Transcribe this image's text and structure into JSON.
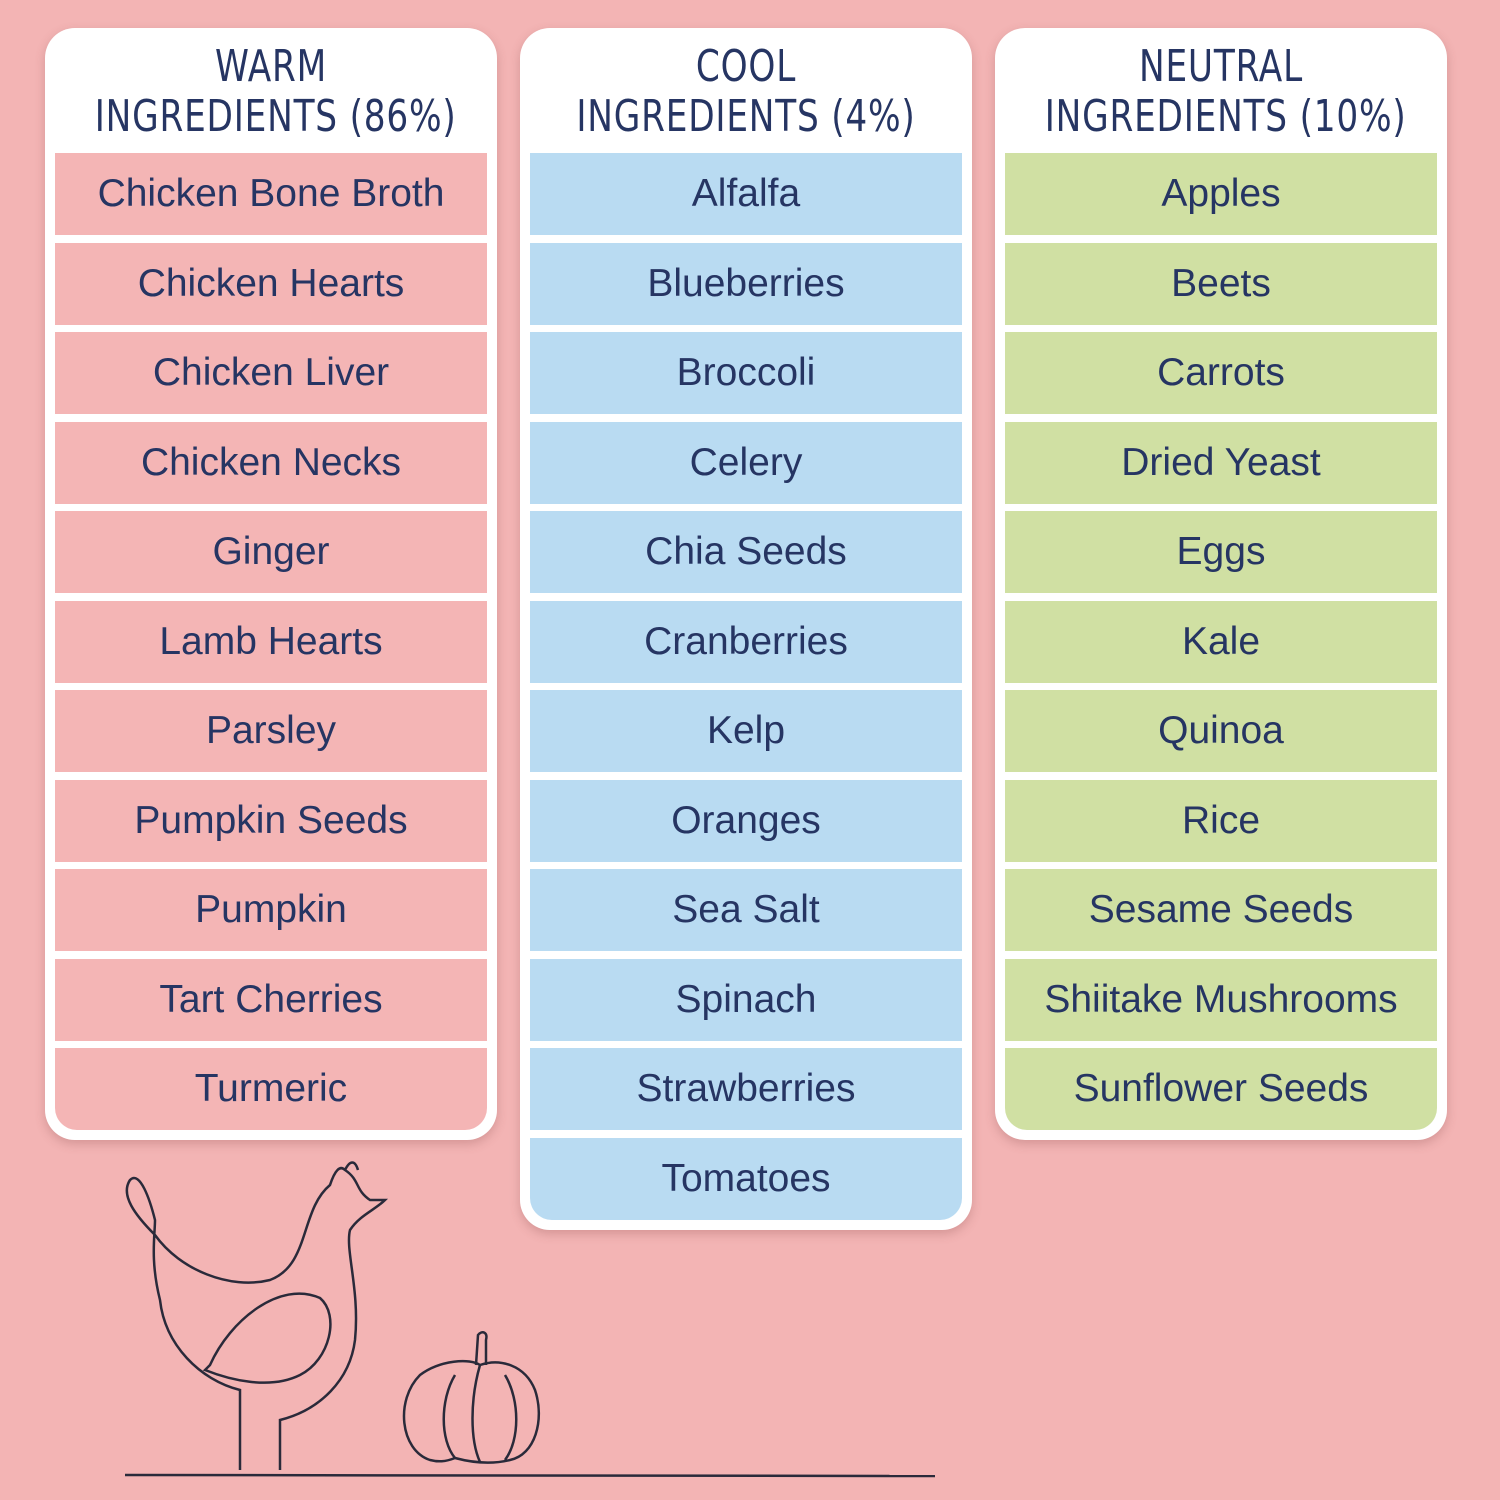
{
  "columns": [
    {
      "title_lines": [
        "WARM",
        "INGREDIENTS (86%)"
      ],
      "color": "#f4b5b5",
      "items": [
        "Chicken Bone Broth",
        "Chicken Hearts",
        "Chicken Liver",
        "Chicken Necks",
        "Ginger",
        "Lamb Hearts",
        "Parsley",
        "Pumpkin Seeds",
        "Pumpkin",
        "Tart Cherries",
        "Turmeric"
      ]
    },
    {
      "title_lines": [
        "COOL",
        "INGREDIENTS (4%)"
      ],
      "color": "#b9dbf2",
      "items": [
        "Alfalfa",
        "Blueberries",
        "Broccoli",
        "Celery",
        "Chia Seeds",
        "Cranberries",
        "Kelp",
        "Oranges",
        "Sea Salt",
        "Spinach",
        "Strawberries",
        "Tomatoes"
      ]
    },
    {
      "title_lines": [
        "NEUTRAL",
        "INGREDIENTS (10%)"
      ],
      "color": "#d0e0a3",
      "items": [
        "Apples",
        "Beets",
        "Carrots",
        "Dried Yeast",
        "Eggs",
        "Kale",
        "Quinoa",
        "Rice",
        "Sesame Seeds",
        "Shiitake Mushrooms",
        "Sunflower Seeds"
      ]
    }
  ]
}
